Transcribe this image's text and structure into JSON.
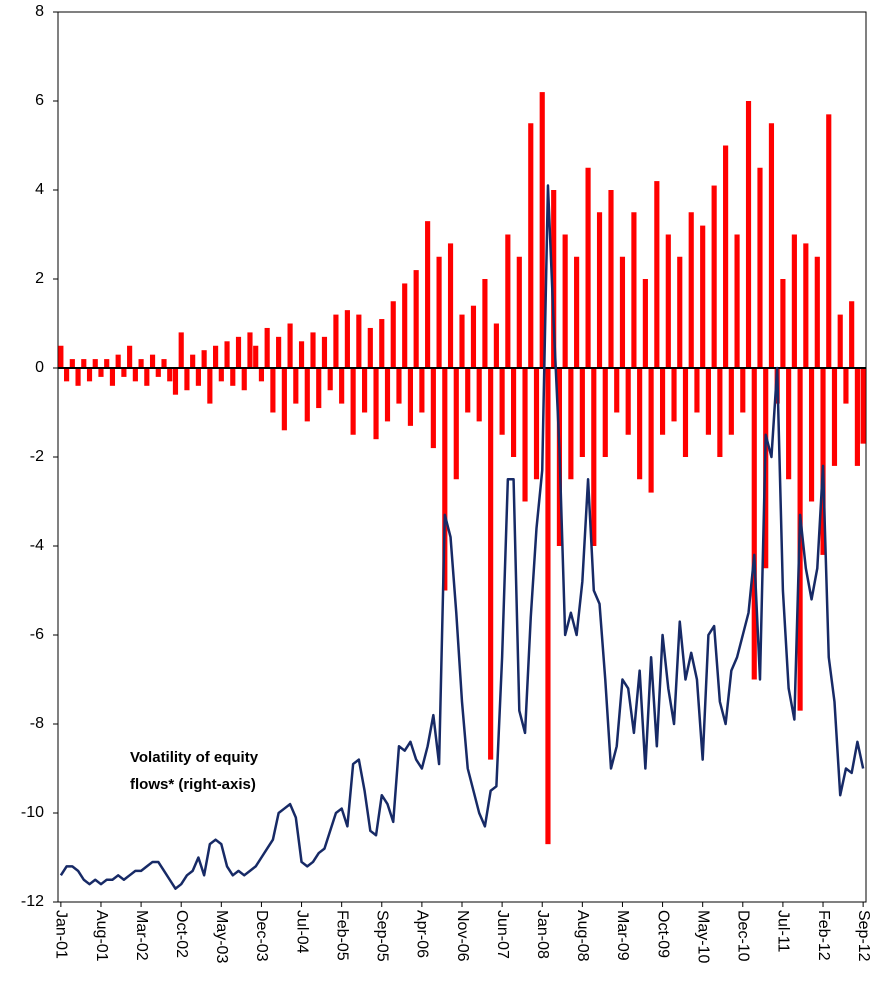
{
  "chart_data": {
    "type": "bar_line",
    "annotation": [
      "Volatility of equity",
      "flows* (right-axis)"
    ],
    "categories": [
      "Jan-01",
      null,
      null,
      null,
      null,
      null,
      null,
      "Aug-01",
      null,
      null,
      null,
      null,
      null,
      null,
      "Mar-02",
      null,
      null,
      null,
      null,
      null,
      null,
      "Oct-02",
      null,
      null,
      null,
      null,
      null,
      null,
      "May-03",
      null,
      null,
      null,
      null,
      null,
      null,
      "Dec-03",
      null,
      null,
      null,
      null,
      null,
      null,
      "Jul-04",
      null,
      null,
      null,
      null,
      null,
      null,
      "Feb-05",
      null,
      null,
      null,
      null,
      null,
      null,
      "Sep-05",
      null,
      null,
      null,
      null,
      null,
      null,
      "Apr-06",
      null,
      null,
      null,
      null,
      null,
      null,
      "Nov-06",
      null,
      null,
      null,
      null,
      null,
      null,
      "Jun-07",
      null,
      null,
      null,
      null,
      null,
      null,
      "Jan-08",
      null,
      null,
      null,
      null,
      null,
      null,
      "Aug-08",
      null,
      null,
      null,
      null,
      null,
      null,
      "Mar-09",
      null,
      null,
      null,
      null,
      null,
      null,
      "Oct-09",
      null,
      null,
      null,
      null,
      null,
      null,
      "May-10",
      null,
      null,
      null,
      null,
      null,
      null,
      "Dec-10",
      null,
      null,
      null,
      null,
      null,
      null,
      "Jul-11",
      null,
      null,
      null,
      null,
      null,
      null,
      "Feb-12",
      null,
      null,
      null,
      null,
      null,
      null,
      "Sep-12"
    ],
    "series": [
      {
        "kind": "bar",
        "color": "#ff0000",
        "values": [
          0.5,
          -0.3,
          0.2,
          -0.4,
          0.2,
          -0.3,
          0.2,
          -0.2,
          0.2,
          -0.4,
          0.3,
          -0.2,
          0.5,
          -0.3,
          0.2,
          -0.4,
          0.3,
          -0.2,
          0.2,
          -0.3,
          -0.6,
          0.8,
          -0.5,
          0.3,
          -0.4,
          0.4,
          -0.8,
          0.5,
          -0.3,
          0.6,
          -0.4,
          0.7,
          -0.5,
          0.8,
          0.5,
          -0.3,
          0.9,
          -1.0,
          0.7,
          -1.4,
          1.0,
          -0.8,
          0.6,
          -1.2,
          0.8,
          -0.9,
          0.7,
          -0.5,
          1.2,
          -0.8,
          1.3,
          -1.5,
          1.2,
          -1.0,
          0.9,
          -1.6,
          1.1,
          -1.2,
          1.5,
          -0.8,
          1.9,
          -1.3,
          2.2,
          -1.0,
          3.3,
          -1.8,
          2.5,
          -5.0,
          2.8,
          -2.5,
          1.2,
          -1.0,
          1.4,
          -1.2,
          2.0,
          -8.8,
          1.0,
          -1.5,
          3.0,
          -2.0,
          2.5,
          -3.0,
          5.5,
          -2.5,
          6.2,
          -10.7,
          4.0,
          -4.0,
          3.0,
          -2.5,
          2.5,
          -2.0,
          4.5,
          -4.0,
          3.5,
          -2.0,
          4.0,
          -1.0,
          2.5,
          -1.5,
          3.5,
          -2.5,
          2.0,
          -2.8,
          4.2,
          -1.5,
          3.0,
          -1.2,
          2.5,
          -2.0,
          3.5,
          -1.0,
          3.2,
          -1.5,
          4.1,
          -2.0,
          5.0,
          -1.5,
          3.0,
          -1.0,
          6.0,
          -7.0,
          4.5,
          -4.5,
          5.5,
          -0.8,
          2.0,
          -2.5,
          3.0,
          -7.7,
          2.8,
          -3.0,
          2.5,
          -4.2,
          5.7,
          -2.2,
          1.2,
          -0.8,
          1.5,
          -2.2,
          -1.7
        ]
      },
      {
        "kind": "line",
        "color": "#172a66",
        "values": [
          -11.4,
          -11.2,
          -11.2,
          -11.3,
          -11.5,
          -11.6,
          -11.5,
          -11.6,
          -11.5,
          -11.5,
          -11.4,
          -11.5,
          -11.4,
          -11.3,
          -11.3,
          -11.2,
          -11.1,
          -11.1,
          -11.3,
          -11.5,
          -11.7,
          -11.6,
          -11.4,
          -11.3,
          -11.0,
          -11.4,
          -10.7,
          -10.6,
          -10.7,
          -11.2,
          -11.4,
          -11.3,
          -11.4,
          -11.3,
          -11.2,
          -11.0,
          -10.8,
          -10.6,
          -10.0,
          -9.9,
          -9.8,
          -10.1,
          -11.1,
          -11.2,
          -11.1,
          -10.9,
          -10.8,
          -10.4,
          -10.0,
          -9.9,
          -10.3,
          -8.9,
          -8.8,
          -9.5,
          -10.4,
          -10.5,
          -9.6,
          -9.8,
          -10.2,
          -8.5,
          -8.6,
          -8.4,
          -8.8,
          -9.0,
          -8.5,
          -7.8,
          -8.9,
          -3.3,
          -3.8,
          -5.5,
          -7.5,
          -9.0,
          -9.5,
          -10.0,
          -10.3,
          -9.5,
          -9.4,
          -6.5,
          -2.5,
          -2.5,
          -7.7,
          -8.2,
          -5.6,
          -3.6,
          -2.3,
          4.1,
          1.0,
          -1.8,
          -6.0,
          -5.5,
          -6.0,
          -4.8,
          -2.5,
          -5.0,
          -5.3,
          -7.0,
          -9.0,
          -8.5,
          -7.0,
          -7.2,
          -8.2,
          -6.8,
          -9.0,
          -6.5,
          -8.5,
          -6.0,
          -7.2,
          -8.0,
          -5.7,
          -7.0,
          -6.4,
          -7.0,
          -8.8,
          -6.0,
          -5.8,
          -7.5,
          -8.0,
          -6.8,
          -6.5,
          -6.0,
          -5.5,
          -4.2,
          -7.0,
          -1.5,
          -2.0,
          0.0,
          -5.0,
          -7.2,
          -7.9,
          -3.3,
          -4.5,
          -5.2,
          -4.5,
          -2.2,
          -6.5,
          -7.5,
          -9.6,
          -9.0,
          -9.1,
          -8.4,
          -9.0
        ]
      }
    ],
    "ylim": [
      -12,
      8
    ],
    "yticks": [
      -12,
      -10,
      -8,
      -6,
      -4,
      -2,
      0,
      2,
      4,
      6,
      8
    ]
  }
}
